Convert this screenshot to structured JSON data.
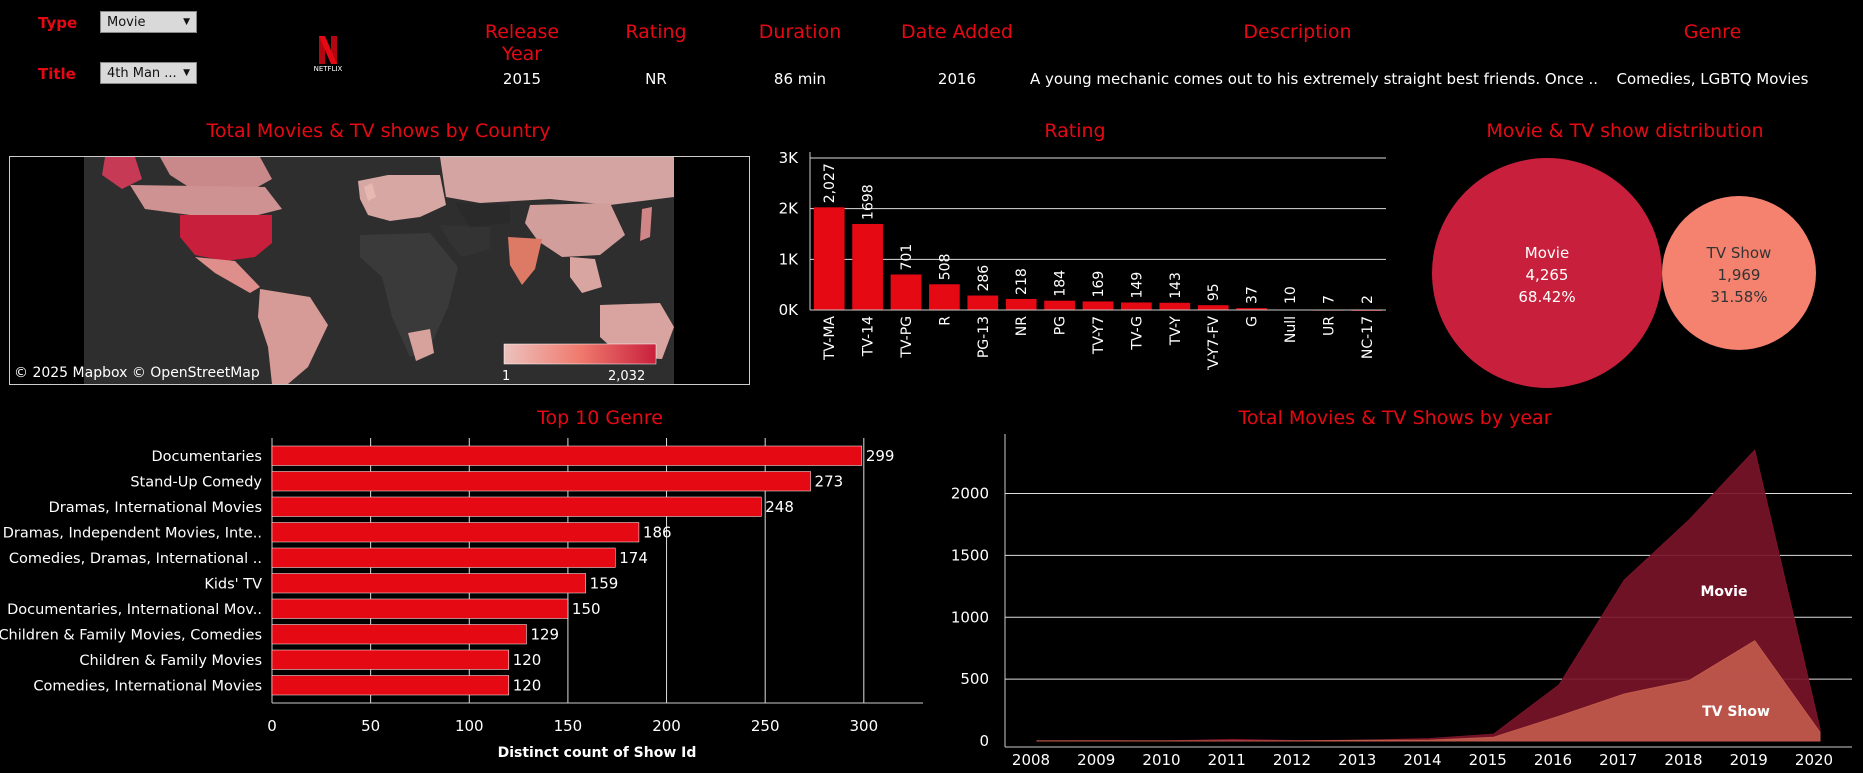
{
  "filters": {
    "type": {
      "label": "Type",
      "value": "Movie"
    },
    "title": {
      "label": "Title",
      "value": "4th Man ..."
    }
  },
  "logo_text": "NETFLIX",
  "details": {
    "columns": [
      {
        "header": "Release Year",
        "value": "2015"
      },
      {
        "header": "Rating",
        "value": "NR"
      },
      {
        "header": "Duration",
        "value": "86 min"
      },
      {
        "header": "Date Added",
        "value": "2016"
      },
      {
        "header": "Description",
        "value": "A young mechanic comes out to his extremely straight best friends. Once .."
      },
      {
        "header": "Genre",
        "value": "Comedies, LGBTQ Movies"
      }
    ]
  },
  "map": {
    "title": "Total Movies & TV shows by Country",
    "attribution": "© 2025 Mapbox  © OpenStreetMap",
    "legend_min": "1",
    "legend_max": "2,032"
  },
  "rating_chart": {
    "title": "Rating",
    "chart_data": {
      "type": "bar",
      "categories": [
        "TV-MA",
        "TV-14",
        "TV-PG",
        "R",
        "PG-13",
        "NR",
        "PG",
        "TV-Y7",
        "TV-G",
        "TV-Y",
        "TV-Y7-FV",
        "G",
        "Null",
        "UR",
        "NC-17"
      ],
      "values": [
        2027,
        1698,
        701,
        508,
        286,
        218,
        184,
        169,
        149,
        143,
        95,
        37,
        10,
        7,
        2
      ],
      "labels": [
        "2,027",
        "1698",
        "701",
        "508",
        "286",
        "218",
        "184",
        "169",
        "149",
        "143",
        "95",
        "37",
        "10",
        "7",
        "2"
      ],
      "yticks": [
        {
          "v": 0,
          "label": "0K"
        },
        {
          "v": 1000,
          "label": "1K"
        },
        {
          "v": 2000,
          "label": "2K"
        },
        {
          "v": 3000,
          "label": "3K"
        }
      ],
      "ylim": [
        0,
        3000
      ],
      "color": "#e50914"
    }
  },
  "distribution": {
    "title": "Movie & TV show distribution",
    "chart_data": {
      "type": "pie",
      "items": [
        {
          "name": "Movie",
          "count": "4,265",
          "pct": "68.42%",
          "value": 4265,
          "color": "#c8203c"
        },
        {
          "name": "TV Show",
          "count": "1,969",
          "pct": "31.58%",
          "value": 1969,
          "color": "#f4826e"
        }
      ]
    }
  },
  "genre_chart": {
    "title": "Top 10 Genre",
    "xlabel": "Distinct count of Show Id",
    "chart_data": {
      "type": "bar",
      "categories": [
        "Documentaries",
        "Stand-Up Comedy",
        "Dramas, International Movies",
        "Dramas, Independent Movies, Inte..",
        "Comedies, Dramas, International ..",
        "Kids' TV",
        "Documentaries, International Mov..",
        "Children & Family Movies, Comedies",
        "Children & Family Movies",
        "Comedies, International Movies"
      ],
      "values": [
        299,
        273,
        248,
        186,
        174,
        159,
        150,
        129,
        120,
        120
      ],
      "xticks": [
        "0",
        "50",
        "100",
        "150",
        "200",
        "250",
        "300"
      ],
      "xlim": [
        0,
        330
      ],
      "color": "#e50914"
    }
  },
  "year_chart": {
    "title": "Total Movies & TV Shows by year",
    "chart_data": {
      "type": "area",
      "x": [
        "2008",
        "2009",
        "2010",
        "2011",
        "2012",
        "2013",
        "2014",
        "2015",
        "2016",
        "2017",
        "2018",
        "2019",
        "2020"
      ],
      "series": [
        {
          "name": "Movie",
          "values": [
            1,
            2,
            1,
            13,
            3,
            6,
            19,
            56,
            453,
            1300,
            1790,
            2350,
            100
          ],
          "color": "#7a1428"
        },
        {
          "name": "TV Show",
          "values": [
            1,
            1,
            1,
            1,
            1,
            6,
            6,
            30,
            200,
            380,
            490,
            810,
            70
          ],
          "color": "#c05a4c"
        }
      ],
      "yticks": [
        "0",
        "500",
        "1000",
        "1500",
        "2000"
      ],
      "ylim": [
        0,
        2400
      ]
    }
  }
}
